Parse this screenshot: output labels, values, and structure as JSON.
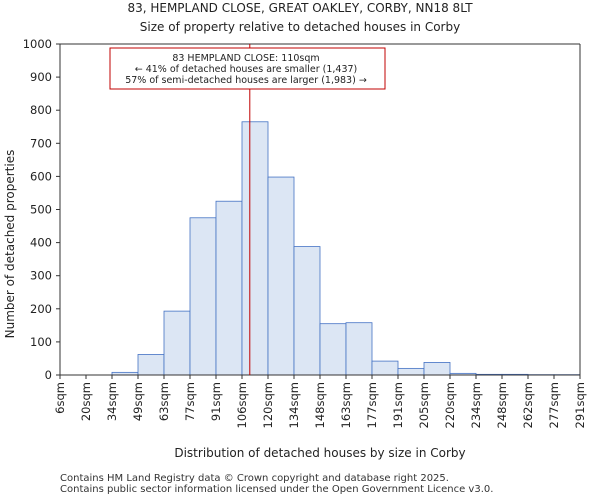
{
  "chart_data": {
    "type": "bar",
    "title": "83, HEMPLAND CLOSE, GREAT OAKLEY, CORBY, NN18 8LT",
    "subtitle": "Size of property relative to detached houses in Corby",
    "xlabel": "Distribution of detached houses by size in Corby",
    "ylabel": "Number of detached properties",
    "ylim": [
      0,
      1000
    ],
    "yticks": [
      0,
      100,
      200,
      300,
      400,
      500,
      600,
      700,
      800,
      900,
      1000
    ],
    "bin_edge_labels": [
      "6sqm",
      "20sqm",
      "34sqm",
      "49sqm",
      "63sqm",
      "77sqm",
      "91sqm",
      "106sqm",
      "120sqm",
      "134sqm",
      "148sqm",
      "163sqm",
      "177sqm",
      "191sqm",
      "205sqm",
      "220sqm",
      "234sqm",
      "248sqm",
      "262sqm",
      "277sqm",
      "291sqm"
    ],
    "values": [
      0,
      0,
      8,
      62,
      193,
      475,
      525,
      765,
      598,
      388,
      155,
      158,
      42,
      20,
      38,
      5,
      2,
      2,
      1,
      1
    ],
    "bar_color": "#dce6f4",
    "bar_edge_color": "#4472c4",
    "marker": {
      "value_sqm": 110,
      "bin_position": 7.3,
      "color": "#c00000"
    },
    "annotation": {
      "line1": "83 HEMPLAND CLOSE: 110sqm",
      "line2": "← 41% of detached houses are smaller (1,437)",
      "line3": "57% of semi-detached houses are larger (1,983) →"
    },
    "grid": false,
    "legend": "none"
  },
  "footer": {
    "line1": "Contains HM Land Registry data © Crown copyright and database right 2025.",
    "line2": "Contains public sector information licensed under the Open Government Licence v3.0."
  }
}
